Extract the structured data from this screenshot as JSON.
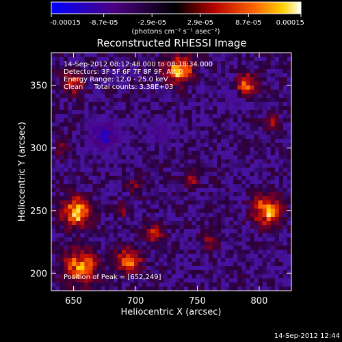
{
  "chart_data": {
    "type": "heatmap",
    "title": "Reconstructed RHESSI Image",
    "xlabel": "Heliocentric X (arcsec)",
    "ylabel": "Heliocentric Y (arcsec)",
    "xlim": [
      632,
      826
    ],
    "ylim": [
      186,
      376
    ],
    "x_ticks": [
      650,
      700,
      750,
      800
    ],
    "y_ticks": [
      200,
      250,
      300,
      350
    ],
    "colorbar": {
      "range": [
        -0.00015,
        0.00015
      ],
      "tick_values": [
        -0.00015,
        -8.7e-05,
        -2.9e-05,
        2.9e-05,
        8.7e-05,
        0.00015
      ],
      "tick_labels": [
        "-0.00015",
        "-8.7e-05",
        "-2.9e-05",
        "2.9e-05",
        "8.7e-05",
        "0.00015"
      ],
      "units_label": "(photons cm⁻² s⁻¹ asec⁻²)"
    },
    "annotations": [
      "14-Sep-2012 08:12:48.000 to 08:18:34.000",
      "Detectors: 3F 5F 6F 7F 8F 9F, Att 0",
      "Energy Range: 12.0 - 25.0 keV",
      "Clean     Total counts: 3.38E+03"
    ],
    "peak_label": "Position of Peak = [652,249]",
    "peak_position": [
      652,
      249
    ],
    "timestamp": "14-Sep-2012 12:44",
    "sources": [
      {
        "x": 652,
        "y": 249,
        "amp": 1.0,
        "radius": 11
      },
      {
        "x": 806,
        "y": 250,
        "amp": 0.9,
        "radius": 11
      },
      {
        "x": 656,
        "y": 205,
        "amp": 0.85,
        "radius": 13
      },
      {
        "x": 695,
        "y": 210,
        "amp": 0.7,
        "radius": 10
      },
      {
        "x": 735,
        "y": 362,
        "amp": 0.85,
        "radius": 11
      },
      {
        "x": 790,
        "y": 350,
        "amp": 0.8,
        "radius": 8
      },
      {
        "x": 650,
        "y": 352,
        "amp": 0.55,
        "radius": 9
      },
      {
        "x": 715,
        "y": 232,
        "amp": 0.55,
        "radius": 7
      },
      {
        "x": 745,
        "y": 275,
        "amp": 0.45,
        "radius": 6
      },
      {
        "x": 700,
        "y": 270,
        "amp": 0.35,
        "radius": 6
      },
      {
        "x": 760,
        "y": 225,
        "amp": 0.4,
        "radius": 7
      },
      {
        "x": 690,
        "y": 250,
        "amp": 0.35,
        "radius": 6
      },
      {
        "x": 810,
        "y": 320,
        "amp": 0.35,
        "radius": 6
      },
      {
        "x": 640,
        "y": 300,
        "amp": 0.3,
        "radius": 6
      }
    ],
    "negative_regions": [
      {
        "x": 675,
        "y": 310,
        "amp": -0.6,
        "radius": 12
      },
      {
        "x": 720,
        "y": 312,
        "amp": -0.4,
        "radius": 9
      },
      {
        "x": 780,
        "y": 340,
        "amp": -0.3,
        "radius": 8
      }
    ]
  }
}
